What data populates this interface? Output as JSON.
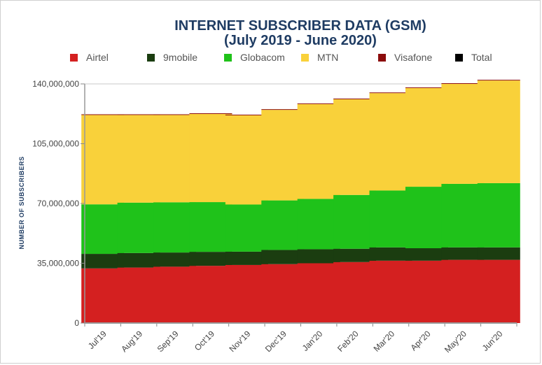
{
  "chart_data": {
    "type": "bar",
    "stacked": true,
    "title": [
      "INTERNET SUBSCRIBER DATA (GSM)",
      "(July 2019 - June 2020)"
    ],
    "ylabel": "NUMBER OF SUBSCRIBERS",
    "xlabel": "",
    "ylim": [
      0,
      140000000
    ],
    "yticks": [
      "0",
      "35,000,000",
      "70,000,000",
      "105,000,000",
      "140,000,000"
    ],
    "grid": true,
    "legend_position": "top",
    "categories": [
      "Jul'19",
      "Aug'19",
      "Sep'19",
      "Oct'19",
      "Nov'19",
      "Dec'19",
      "Jan'20",
      "Feb'20",
      "Mar'20",
      "Apr'20",
      "May'20",
      "Jun'20"
    ],
    "series": [
      {
        "name": "Airtel",
        "color": "#d42020",
        "values": [
          32000000,
          32500000,
          33000000,
          33500000,
          34000000,
          34500000,
          35000000,
          35700000,
          36500000,
          36500000,
          37000000,
          37000000
        ]
      },
      {
        "name": "9mobile",
        "color": "#1b3d10",
        "values": [
          8500000,
          8500000,
          8300000,
          8200000,
          7800000,
          8300000,
          8200000,
          7800000,
          7800000,
          7300000,
          7300000,
          7300000
        ]
      },
      {
        "name": "Globacom",
        "color": "#1fc21a",
        "values": [
          29000000,
          29500000,
          29400000,
          29100000,
          27600000,
          29000000,
          29500000,
          31500000,
          33300000,
          36000000,
          37200000,
          37600000
        ]
      },
      {
        "name": "MTN",
        "color": "#f9d13a",
        "values": [
          52300000,
          51300000,
          51100000,
          51600000,
          52200000,
          53000000,
          55500000,
          56000000,
          57000000,
          57800000,
          58500000,
          60100000
        ]
      },
      {
        "name": "Visafone",
        "color": "#8b0c0c",
        "values": [
          400000,
          400000,
          400000,
          400000,
          400000,
          400000,
          400000,
          400000,
          400000,
          400000,
          400000,
          400000
        ]
      }
    ],
    "extra_legend": [
      {
        "name": "Total",
        "color": "#000000"
      }
    ]
  }
}
